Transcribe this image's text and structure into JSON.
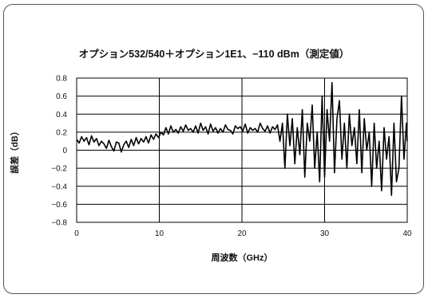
{
  "chart_data": {
    "type": "line",
    "title": "オプション532/540＋オプション1E1、−110 dBm（測定値）",
    "xlabel": "周波数（GHz）",
    "ylabel": "誤差（dB）",
    "xlim": [
      0,
      40
    ],
    "ylim": [
      -0.8,
      0.8
    ],
    "x_ticks": [
      0,
      10,
      20,
      30,
      40
    ],
    "x_tick_labels": [
      "0",
      "10",
      "20",
      "30",
      "40"
    ],
    "y_ticks": [
      0.8,
      0.6,
      0.4,
      0.2,
      0,
      -0.2,
      -0.4,
      -0.6,
      -0.8
    ],
    "y_tick_labels": [
      "0.8",
      "0.6",
      "0.4",
      "0.2",
      "0",
      "−0.2",
      "−0.4",
      "−0.6",
      "−0.8"
    ],
    "grid": true,
    "series": [
      {
        "color": "#000000",
        "x": [
          0,
          0.3,
          0.6,
          0.9,
          1.2,
          1.5,
          1.8,
          2.1,
          2.4,
          2.7,
          3.0,
          3.3,
          3.6,
          3.9,
          4.2,
          4.5,
          4.8,
          5.1,
          5.4,
          5.7,
          6.0,
          6.3,
          6.6,
          6.9,
          7.2,
          7.5,
          7.8,
          8.1,
          8.4,
          8.7,
          9.0,
          9.3,
          9.6,
          9.9,
          10.2,
          10.5,
          10.8,
          11.1,
          11.4,
          11.7,
          12.0,
          12.3,
          12.6,
          12.9,
          13.2,
          13.5,
          13.8,
          14.1,
          14.4,
          14.7,
          15.0,
          15.3,
          15.6,
          15.9,
          16.2,
          16.5,
          16.8,
          17.1,
          17.4,
          17.7,
          18.0,
          18.3,
          18.6,
          18.9,
          19.2,
          19.5,
          19.8,
          20.1,
          20.4,
          20.7,
          21.0,
          21.3,
          21.6,
          21.9,
          22.2,
          22.5,
          22.8,
          23.1,
          23.4,
          23.7,
          24.0,
          24.3,
          24.6,
          24.9,
          25.2,
          25.5,
          25.8,
          26.1,
          26.4,
          26.7,
          27.0,
          27.3,
          27.6,
          27.9,
          28.2,
          28.5,
          28.8,
          29.1,
          29.4,
          29.7,
          30.0,
          30.3,
          30.6,
          30.9,
          31.2,
          31.5,
          31.8,
          32.1,
          32.4,
          32.7,
          33.0,
          33.3,
          33.6,
          33.9,
          34.2,
          34.5,
          34.8,
          35.1,
          35.4,
          35.7,
          36.0,
          36.3,
          36.6,
          36.9,
          37.2,
          37.5,
          37.8,
          38.1,
          38.4,
          38.7,
          39.0,
          39.3,
          39.6,
          39.9,
          40.0
        ],
        "values": [
          0.12,
          0.08,
          0.15,
          0.1,
          0.14,
          0.06,
          0.16,
          0.09,
          0.13,
          0.05,
          0.1,
          0.07,
          0.02,
          0.11,
          0.04,
          -0.01,
          0.09,
          0.08,
          -0.02,
          0.06,
          0.1,
          0.03,
          0.12,
          0.05,
          0.14,
          0.07,
          0.13,
          0.09,
          0.15,
          0.08,
          0.17,
          0.12,
          0.18,
          0.14,
          0.2,
          0.17,
          0.25,
          0.18,
          0.27,
          0.2,
          0.23,
          0.19,
          0.26,
          0.21,
          0.28,
          0.22,
          0.24,
          0.2,
          0.27,
          0.19,
          0.3,
          0.22,
          0.26,
          0.18,
          0.29,
          0.21,
          0.25,
          0.19,
          0.24,
          0.2,
          0.28,
          0.23,
          0.22,
          0.18,
          0.27,
          0.24,
          0.26,
          0.21,
          0.29,
          0.19,
          0.25,
          0.22,
          0.24,
          0.2,
          0.3,
          0.24,
          0.21,
          0.27,
          0.19,
          0.26,
          0.23,
          0.28,
          0.1,
          0.3,
          -0.2,
          0.4,
          0.05,
          0.35,
          -0.15,
          0.25,
          -0.05,
          0.45,
          -0.3,
          0.3,
          0.1,
          0.5,
          -0.2,
          0.2,
          -0.35,
          0.6,
          -0.3,
          0.45,
          0.1,
          0.75,
          -0.25,
          0.35,
          0.55,
          -0.1,
          0.3,
          -0.2,
          0.4,
          0.05,
          0.25,
          -0.15,
          0.45,
          -0.25,
          0.35,
          0.0,
          0.2,
          -0.4,
          0.3,
          -0.2,
          0.1,
          -0.45,
          0.25,
          -0.1,
          0.15,
          -0.5,
          0.3,
          -0.35,
          -0.2,
          0.6,
          -0.1,
          0.3,
          0.1
        ]
      }
    ]
  }
}
